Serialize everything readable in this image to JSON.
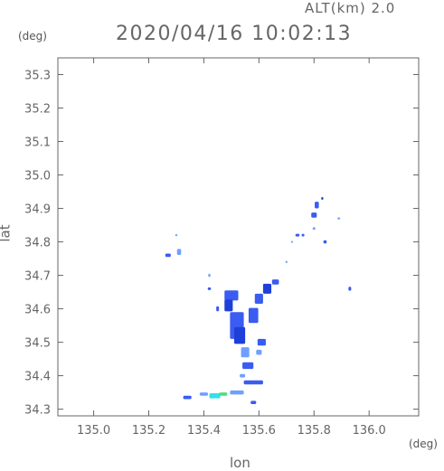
{
  "header": {
    "altitude": "ALT(km) 2.0",
    "datetime": "2020/04/16 10:02:13"
  },
  "axes": {
    "lat_unit": "(deg)",
    "lon_unit": "(deg)",
    "ylabel": "lat",
    "xlabel": "lon"
  },
  "chart_data": {
    "type": "map",
    "xlim": [
      134.87,
      136.18
    ],
    "ylim": [
      34.28,
      35.35
    ],
    "xticks": [
      {
        "value": 135.0,
        "label": "135.0"
      },
      {
        "value": 135.2,
        "label": "135.2"
      },
      {
        "value": 135.4,
        "label": "135.4"
      },
      {
        "value": 135.6,
        "label": "135.6"
      },
      {
        "value": 135.8,
        "label": "135.8"
      },
      {
        "value": 136.0,
        "label": "136.0"
      }
    ],
    "yticks": [
      {
        "value": 34.3,
        "label": "34.3"
      },
      {
        "value": 34.4,
        "label": "34.4"
      },
      {
        "value": 34.5,
        "label": "34.5"
      },
      {
        "value": 34.6,
        "label": "34.6"
      },
      {
        "value": 34.7,
        "label": "34.7"
      },
      {
        "value": 34.8,
        "label": "34.8"
      },
      {
        "value": 34.9,
        "label": "34.9"
      },
      {
        "value": 35.0,
        "label": "35.0"
      },
      {
        "value": 35.1,
        "label": "35.1"
      },
      {
        "value": 35.2,
        "label": "35.2"
      },
      {
        "value": 35.3,
        "label": "35.3"
      }
    ],
    "grid": false,
    "colors": {
      "light": "#6fa0ff",
      "moderate": "#3a5cf0",
      "strong": "#1e3fd8",
      "cyan": "#35e0e8",
      "green": "#4fdc80"
    },
    "echo_cells": [
      {
        "lon": 135.27,
        "lat": 34.76,
        "dlon": 0.02,
        "dlat": 0.01,
        "level": "moderate"
      },
      {
        "lon": 135.31,
        "lat": 34.77,
        "dlon": 0.015,
        "dlat": 0.018,
        "level": "light"
      },
      {
        "lon": 135.3,
        "lat": 34.82,
        "dlon": 0.008,
        "dlat": 0.006,
        "level": "light"
      },
      {
        "lon": 135.42,
        "lat": 34.7,
        "dlon": 0.008,
        "dlat": 0.01,
        "level": "light"
      },
      {
        "lon": 135.42,
        "lat": 34.66,
        "dlon": 0.012,
        "dlat": 0.008,
        "level": "moderate"
      },
      {
        "lon": 135.45,
        "lat": 34.6,
        "dlon": 0.01,
        "dlat": 0.015,
        "level": "moderate"
      },
      {
        "lon": 135.5,
        "lat": 34.64,
        "dlon": 0.05,
        "dlat": 0.03,
        "level": "moderate"
      },
      {
        "lon": 135.49,
        "lat": 34.61,
        "dlon": 0.03,
        "dlat": 0.035,
        "level": "strong"
      },
      {
        "lon": 135.52,
        "lat": 34.55,
        "dlon": 0.05,
        "dlat": 0.08,
        "level": "moderate"
      },
      {
        "lon": 135.53,
        "lat": 34.52,
        "dlon": 0.04,
        "dlat": 0.05,
        "level": "strong"
      },
      {
        "lon": 135.55,
        "lat": 34.47,
        "dlon": 0.03,
        "dlat": 0.03,
        "level": "light"
      },
      {
        "lon": 135.56,
        "lat": 34.43,
        "dlon": 0.04,
        "dlat": 0.02,
        "level": "moderate"
      },
      {
        "lon": 135.58,
        "lat": 34.58,
        "dlon": 0.035,
        "dlat": 0.045,
        "level": "moderate"
      },
      {
        "lon": 135.6,
        "lat": 34.63,
        "dlon": 0.03,
        "dlat": 0.03,
        "level": "moderate"
      },
      {
        "lon": 135.63,
        "lat": 34.66,
        "dlon": 0.03,
        "dlat": 0.03,
        "level": "strong"
      },
      {
        "lon": 135.66,
        "lat": 34.68,
        "dlon": 0.025,
        "dlat": 0.015,
        "level": "moderate"
      },
      {
        "lon": 135.61,
        "lat": 34.5,
        "dlon": 0.03,
        "dlat": 0.02,
        "level": "moderate"
      },
      {
        "lon": 135.6,
        "lat": 34.47,
        "dlon": 0.02,
        "dlat": 0.015,
        "level": "light"
      },
      {
        "lon": 135.54,
        "lat": 34.4,
        "dlon": 0.02,
        "dlat": 0.01,
        "level": "light"
      },
      {
        "lon": 135.7,
        "lat": 34.74,
        "dlon": 0.008,
        "dlat": 0.006,
        "level": "light"
      },
      {
        "lon": 135.72,
        "lat": 34.8,
        "dlon": 0.008,
        "dlat": 0.006,
        "level": "light"
      },
      {
        "lon": 135.74,
        "lat": 34.82,
        "dlon": 0.015,
        "dlat": 0.008,
        "level": "moderate"
      },
      {
        "lon": 135.76,
        "lat": 34.82,
        "dlon": 0.01,
        "dlat": 0.008,
        "level": "moderate"
      },
      {
        "lon": 135.8,
        "lat": 34.88,
        "dlon": 0.02,
        "dlat": 0.015,
        "level": "moderate"
      },
      {
        "lon": 135.81,
        "lat": 34.91,
        "dlon": 0.015,
        "dlat": 0.02,
        "level": "moderate"
      },
      {
        "lon": 135.83,
        "lat": 34.93,
        "dlon": 0.008,
        "dlat": 0.008,
        "level": "strong"
      },
      {
        "lon": 135.8,
        "lat": 34.84,
        "dlon": 0.01,
        "dlat": 0.008,
        "level": "light"
      },
      {
        "lon": 135.84,
        "lat": 34.8,
        "dlon": 0.012,
        "dlat": 0.01,
        "level": "moderate"
      },
      {
        "lon": 135.89,
        "lat": 34.87,
        "dlon": 0.01,
        "dlat": 0.006,
        "level": "light"
      },
      {
        "lon": 135.93,
        "lat": 34.66,
        "dlon": 0.01,
        "dlat": 0.012,
        "level": "moderate"
      },
      {
        "lon": 135.58,
        "lat": 34.38,
        "dlon": 0.07,
        "dlat": 0.012,
        "level": "moderate"
      },
      {
        "lon": 135.58,
        "lat": 34.32,
        "dlon": 0.02,
        "dlat": 0.01,
        "level": "moderate"
      },
      {
        "lon": 135.44,
        "lat": 34.34,
        "dlon": 0.04,
        "dlat": 0.015,
        "level": "cyan"
      },
      {
        "lon": 135.4,
        "lat": 34.345,
        "dlon": 0.03,
        "dlat": 0.01,
        "level": "light"
      },
      {
        "lon": 135.34,
        "lat": 34.335,
        "dlon": 0.03,
        "dlat": 0.01,
        "level": "moderate"
      },
      {
        "lon": 135.47,
        "lat": 34.345,
        "dlon": 0.03,
        "dlat": 0.01,
        "level": "green"
      },
      {
        "lon": 135.52,
        "lat": 34.35,
        "dlon": 0.05,
        "dlat": 0.012,
        "level": "light"
      }
    ]
  }
}
